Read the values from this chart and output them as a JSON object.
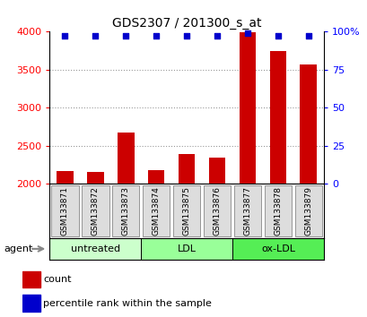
{
  "title": "GDS2307 / 201300_s_at",
  "categories": [
    "GSM133871",
    "GSM133872",
    "GSM133873",
    "GSM133874",
    "GSM133875",
    "GSM133876",
    "GSM133877",
    "GSM133878",
    "GSM133879"
  ],
  "bar_values": [
    2170,
    2155,
    2680,
    2175,
    2390,
    2340,
    3990,
    3740,
    3570
  ],
  "percentile_values": [
    97,
    97,
    97,
    97,
    97,
    97,
    99,
    97,
    97
  ],
  "bar_color": "#cc0000",
  "dot_color": "#0000cc",
  "ylim_left": [
    2000,
    4000
  ],
  "ylim_right": [
    0,
    100
  ],
  "yticks_left": [
    2000,
    2500,
    3000,
    3500,
    4000
  ],
  "yticks_right": [
    0,
    25,
    50,
    75,
    100
  ],
  "yticklabels_right": [
    "0",
    "25",
    "50",
    "75",
    "100%"
  ],
  "groups": [
    {
      "label": "untreated",
      "start": 0,
      "end": 3,
      "color": "#ccffcc"
    },
    {
      "label": "LDL",
      "start": 3,
      "end": 6,
      "color": "#99ff99"
    },
    {
      "label": "ox-LDL",
      "start": 6,
      "end": 9,
      "color": "#55ee55"
    }
  ],
  "agent_label": "agent",
  "legend_count_label": "count",
  "legend_percentile_label": "percentile rank within the sample",
  "background_color": "#ffffff",
  "plot_bg_color": "#ffffff",
  "grid_color": "#999999",
  "label_box_color": "#dddddd",
  "label_box_edgecolor": "#888888"
}
